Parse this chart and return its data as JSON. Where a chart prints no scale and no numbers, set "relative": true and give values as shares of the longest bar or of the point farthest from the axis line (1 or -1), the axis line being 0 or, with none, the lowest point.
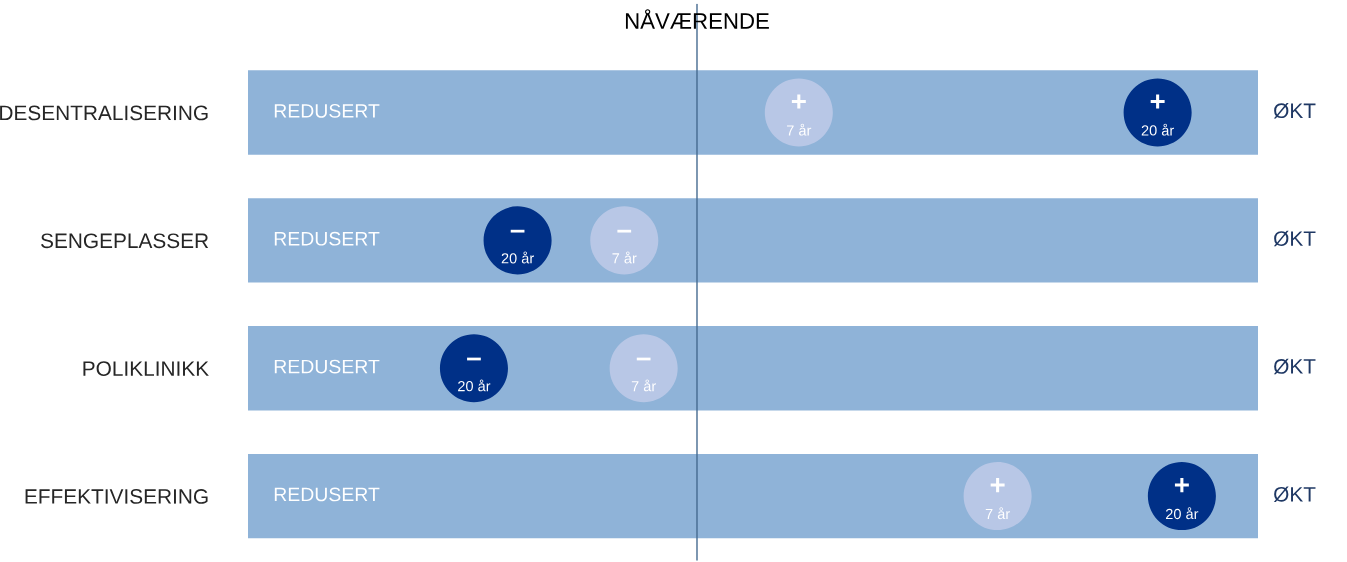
{
  "chart_data": {
    "type": "scatter",
    "relative": true,
    "orientation": "horizontal",
    "categories": [
      "DESENTRALISERING",
      "SENGEPLASSER",
      "POLIKLINIKK",
      "EFFEKTIVISERING"
    ],
    "series": [
      {
        "name": "7 år",
        "color": "#b8c7e6",
        "values": [
          0.21,
          -0.15,
          -0.11,
          0.62
        ]
      },
      {
        "name": "20 år",
        "color": "#003087",
        "values": [
          0.95,
          -0.37,
          -0.46,
          1
        ]
      }
    ],
    "ref_lines": [
      {
        "axis": "x",
        "value": 0,
        "label": "NÅVÆRENDE",
        "color": "#44698f"
      }
    ],
    "annotations": [
      "REDUSERT",
      "ØKT",
      "+",
      "–"
    ],
    "tick_labels": "y",
    "legend": false,
    "marker": "circle"
  }
}
